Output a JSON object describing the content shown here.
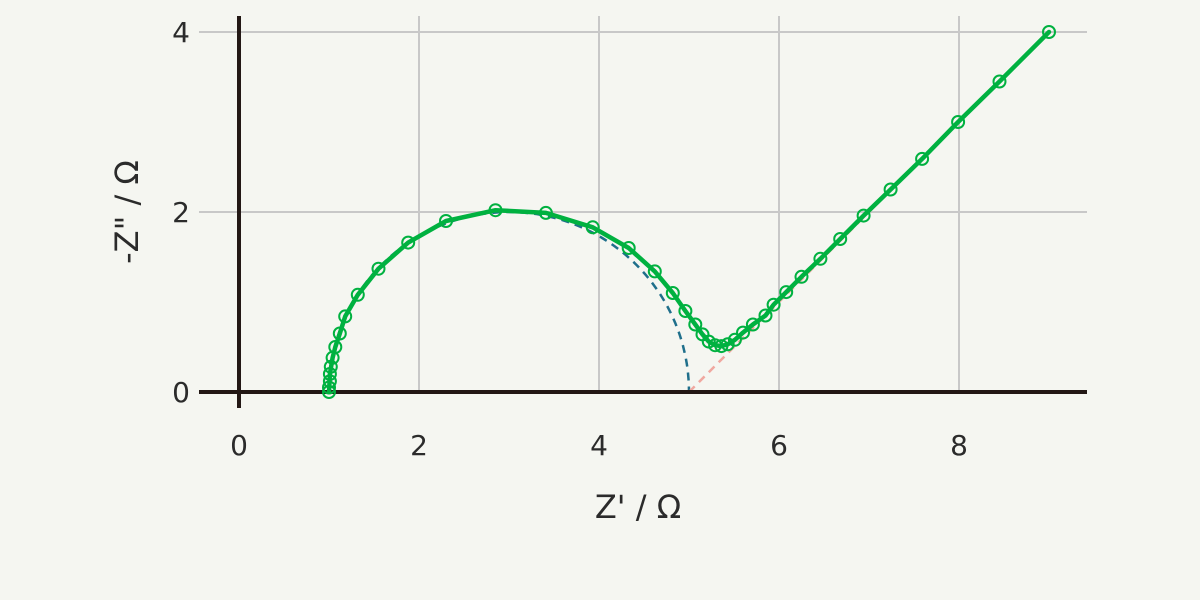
{
  "chart_data": {
    "type": "line",
    "xlabel": "Z' / Ω",
    "ylabel": "-Z\" / Ω",
    "xlim": [
      0,
      9.5
    ],
    "ylim": [
      0,
      4.2
    ],
    "xticks": [
      0,
      2,
      4,
      6,
      8
    ],
    "yticks": [
      0,
      2,
      4
    ],
    "grid": true,
    "series": [
      {
        "style": "markers",
        "color": "#00b140",
        "points": [
          [
            1.0,
            0.0
          ],
          [
            1.0,
            0.05
          ],
          [
            1.01,
            0.12
          ],
          [
            1.01,
            0.2
          ],
          [
            1.02,
            0.28
          ],
          [
            1.04,
            0.38
          ],
          [
            1.07,
            0.5
          ],
          [
            1.12,
            0.65
          ],
          [
            1.18,
            0.84
          ],
          [
            1.32,
            1.08
          ],
          [
            1.55,
            1.37
          ],
          [
            1.88,
            1.66
          ],
          [
            2.3,
            1.9
          ],
          [
            2.85,
            2.02
          ],
          [
            3.41,
            1.99
          ],
          [
            3.93,
            1.83
          ],
          [
            4.33,
            1.6
          ],
          [
            4.62,
            1.34
          ],
          [
            4.82,
            1.1
          ],
          [
            4.96,
            0.9
          ],
          [
            5.07,
            0.75
          ],
          [
            5.15,
            0.64
          ],
          [
            5.22,
            0.56
          ],
          [
            5.29,
            0.52
          ],
          [
            5.36,
            0.51
          ],
          [
            5.43,
            0.53
          ],
          [
            5.51,
            0.58
          ],
          [
            5.6,
            0.66
          ],
          [
            5.71,
            0.75
          ],
          [
            5.85,
            0.85
          ],
          [
            5.94,
            0.97
          ],
          [
            6.08,
            1.11
          ],
          [
            6.25,
            1.28
          ],
          [
            6.46,
            1.48
          ],
          [
            6.68,
            1.7
          ],
          [
            6.94,
            1.96
          ],
          [
            7.24,
            2.25
          ],
          [
            7.59,
            2.59
          ],
          [
            7.99,
            3.0
          ],
          [
            8.45,
            3.45
          ],
          [
            9.0,
            4.0
          ]
        ]
      },
      {
        "style": "line",
        "color": "#00b140",
        "points": [
          [
            1.0,
            0.0
          ],
          [
            1.01,
            0.2
          ],
          [
            1.04,
            0.38
          ],
          [
            1.07,
            0.5
          ],
          [
            1.12,
            0.65
          ],
          [
            1.18,
            0.84
          ],
          [
            1.32,
            1.08
          ],
          [
            1.55,
            1.37
          ],
          [
            1.88,
            1.66
          ],
          [
            2.3,
            1.9
          ],
          [
            2.85,
            2.02
          ],
          [
            3.41,
            1.99
          ],
          [
            3.93,
            1.83
          ],
          [
            4.33,
            1.6
          ],
          [
            4.62,
            1.34
          ],
          [
            4.82,
            1.1
          ],
          [
            4.96,
            0.9
          ],
          [
            5.07,
            0.75
          ],
          [
            5.15,
            0.64
          ],
          [
            5.22,
            0.56
          ],
          [
            5.29,
            0.52
          ],
          [
            5.36,
            0.51
          ],
          [
            5.43,
            0.53
          ],
          [
            5.51,
            0.58
          ],
          [
            5.6,
            0.66
          ],
          [
            5.71,
            0.75
          ],
          [
            5.85,
            0.85
          ],
          [
            5.94,
            0.97
          ],
          [
            6.08,
            1.11
          ],
          [
            6.25,
            1.28
          ],
          [
            6.46,
            1.48
          ],
          [
            6.68,
            1.7
          ],
          [
            6.94,
            1.96
          ],
          [
            7.24,
            2.25
          ],
          [
            7.59,
            2.59
          ],
          [
            7.99,
            3.0
          ],
          [
            8.45,
            3.45
          ],
          [
            9.0,
            4.0
          ]
        ]
      },
      {
        "style": "dashed",
        "color": "#1f6f8b",
        "shape": "semicircle",
        "center": [
          3.0,
          0.0
        ],
        "radius": 2.0
      },
      {
        "style": "dashed",
        "color": "#f0a8a0",
        "points": [
          [
            5.0,
            0.0
          ],
          [
            9.0,
            4.0
          ]
        ]
      }
    ]
  }
}
